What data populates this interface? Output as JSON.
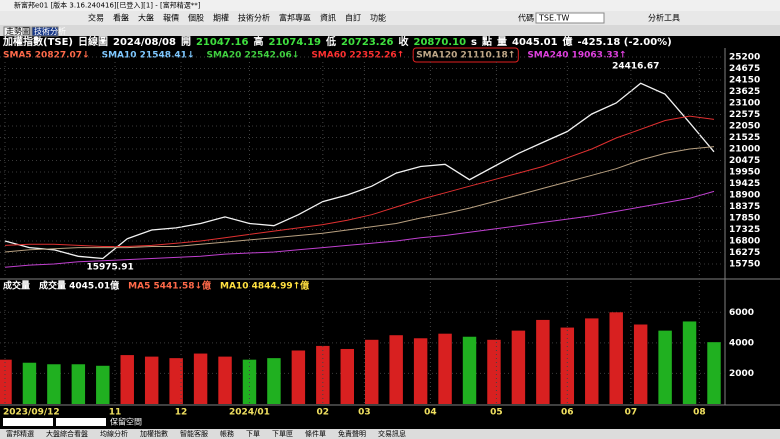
{
  "window_title": "新富邦e01 [版本 3.16.240416][已登入][1] - [富邦精選**]",
  "menu": [
    "交易",
    "看盤",
    "大盤",
    "報價",
    "個股",
    "期權",
    "技術分析",
    "富邦專區",
    "資訊",
    "自訂",
    "功能"
  ],
  "symbol_label": "代碼",
  "symbol": "TSE.TW",
  "tools": "分析工具",
  "tabs": [
    "走勢圖",
    "技術分析"
  ],
  "info_bar": [
    {
      "text": "加權指數(TSE)",
      "color": "#ffffff"
    },
    {
      "text": "日線圖",
      "color": "#ffffff"
    },
    {
      "text": "2024/08/08",
      "color": "#ffffff"
    },
    {
      "text": "開",
      "color": "#ffffff"
    },
    {
      "text": "21047.16",
      "color": "#3fe03f"
    },
    {
      "text": "高",
      "color": "#ffffff"
    },
    {
      "text": "21074.19",
      "color": "#3fe03f"
    },
    {
      "text": "低",
      "color": "#ffffff"
    },
    {
      "text": "20723.26",
      "color": "#3fe03f"
    },
    {
      "text": "收",
      "color": "#ffffff"
    },
    {
      "text": "20870.10",
      "color": "#3fe03f"
    },
    {
      "text": "s",
      "color": "#ffffff"
    },
    {
      "text": "點",
      "color": "#ffffff"
    },
    {
      "text": "量",
      "color": "#ffffff"
    },
    {
      "text": "4045.01",
      "color": "#ffffff"
    },
    {
      "text": "億",
      "color": "#ffffff"
    },
    {
      "text": "-425.18 (-2.00%)",
      "color": "#ffffff"
    }
  ],
  "ma_legend": [
    {
      "text": "SMA5 20827.07↓",
      "color": "#ff6a4a"
    },
    {
      "text": "SMA10 21548.41↓",
      "color": "#7fc8ff"
    },
    {
      "text": "SMA20 22542.06↓",
      "color": "#40d040"
    },
    {
      "text": "SMA60 22352.26↑",
      "color": "#ff3030"
    },
    {
      "text": "SMA120 21110.18↑",
      "color": "#c0a888"
    },
    {
      "text": "SMA240 19063.33↑",
      "color": "#e040e0"
    }
  ],
  "volume_legend": [
    {
      "text": "成交量",
      "color": "#ffffff"
    },
    {
      "text": "成交量 4045.01億",
      "color": "#ffffff"
    },
    {
      "text": "MA5 5441.58↓億",
      "color": "#ff6a4a"
    },
    {
      "text": "MA10 4844.99↑億",
      "color": "#ffe040"
    }
  ],
  "chart_data": [
    {
      "type": "line",
      "x": [
        0,
        1,
        2,
        3,
        4,
        5,
        6,
        7,
        8,
        9,
        10,
        11,
        12,
        13,
        14,
        15,
        16,
        17,
        18,
        19,
        20,
        21,
        22,
        23,
        24,
        25,
        26,
        27,
        28,
        29
      ],
      "series": [
        {
          "color": "#f2f2f2",
          "values": [
            16800,
            16500,
            16400,
            16100,
            16000,
            16900,
            17300,
            17400,
            17600,
            17900,
            17600,
            17500,
            18000,
            18600,
            18900,
            19300,
            19900,
            20200,
            20300,
            19600,
            20200,
            20800,
            21300,
            21800,
            22600,
            23100,
            24000,
            23500,
            22200,
            20870
          ]
        },
        {
          "color": "#e03030",
          "values": [
            16600,
            16650,
            16650,
            16600,
            16550,
            16550,
            16600,
            16700,
            16800,
            16950,
            17100,
            17250,
            17400,
            17550,
            17750,
            18000,
            18350,
            18700,
            19000,
            19300,
            19600,
            19900,
            20200,
            20600,
            21000,
            21500,
            21900,
            22300,
            22500,
            22352
          ]
        },
        {
          "color": "#b8a080",
          "values": [
            16300,
            16400,
            16450,
            16500,
            16500,
            16500,
            16550,
            16550,
            16650,
            16750,
            16850,
            16950,
            17050,
            17150,
            17300,
            17450,
            17600,
            17850,
            18050,
            18300,
            18600,
            18900,
            19200,
            19500,
            19800,
            20100,
            20500,
            20800,
            21000,
            21110
          ]
        },
        {
          "color": "#c040d0",
          "values": [
            15600,
            15700,
            15750,
            15850,
            15900,
            15950,
            16000,
            16050,
            16100,
            16200,
            16250,
            16300,
            16400,
            16500,
            16600,
            16700,
            16800,
            16950,
            17050,
            17200,
            17350,
            17500,
            17650,
            17800,
            17950,
            18150,
            18350,
            18550,
            18750,
            19063
          ]
        }
      ],
      "xlim": [
        0,
        29
      ],
      "ylim": [
        15750,
        25200
      ],
      "yticks": [
        15750,
        16275,
        16800,
        17325,
        17850,
        18375,
        18900,
        19425,
        19950,
        20475,
        21000,
        21525,
        22050,
        22575,
        23100,
        23625,
        24150,
        24675,
        25200
      ],
      "annotations": [
        {
          "value": 24416.67,
          "x": 25.8
        },
        {
          "value": 15975.91,
          "x": 4.3
        }
      ]
    },
    {
      "type": "bar",
      "x": [
        0,
        1,
        2,
        3,
        4,
        5,
        6,
        7,
        8,
        9,
        10,
        11,
        12,
        13,
        14,
        15,
        16,
        17,
        18,
        19,
        20,
        21,
        22,
        23,
        24,
        25,
        26,
        27,
        28,
        29
      ],
      "values": [
        2900,
        2700,
        2600,
        2600,
        2500,
        3200,
        3100,
        3000,
        3300,
        3100,
        2900,
        3000,
        3500,
        3800,
        3600,
        4200,
        4500,
        4300,
        4600,
        4400,
        4200,
        4800,
        5500,
        5000,
        5600,
        6000,
        5200,
        4800,
        5400,
        4045
      ],
      "up_color": "#d82020",
      "down_color": "#20b020",
      "xlim": [
        0,
        29
      ],
      "ylim": [
        0,
        7000
      ],
      "yticks": [
        2000,
        4000,
        6000
      ],
      "xticks": [
        {
          "value": 0,
          "label": "2023/09/12"
        },
        {
          "value": 4.5,
          "label": "11"
        },
        {
          "value": 7.2,
          "label": "12"
        },
        {
          "value": 10,
          "label": "2024/01"
        },
        {
          "value": 13,
          "label": "02"
        },
        {
          "value": 14.7,
          "label": "03"
        },
        {
          "value": 17.4,
          "label": "04"
        },
        {
          "value": 20.1,
          "label": "05"
        },
        {
          "value": 23,
          "label": "06"
        },
        {
          "value": 25.6,
          "label": "07"
        },
        {
          "value": 28.4,
          "label": "08"
        }
      ]
    }
  ],
  "reserve": "保留空間",
  "status_bar": [
    "富邦精選",
    "大盤綜合看盤",
    "均線分析",
    "加權指數",
    "智能客服",
    "帳務",
    "下單",
    "下單匣",
    "條件單",
    "免責聲明",
    "交易訊息"
  ]
}
